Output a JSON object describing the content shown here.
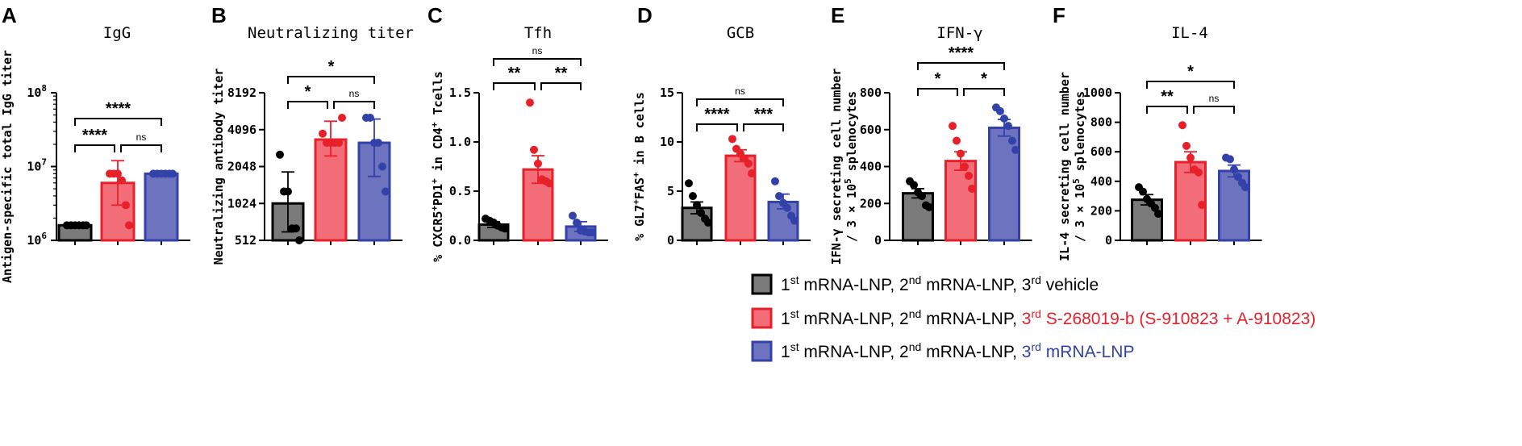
{
  "colors": {
    "vehicle_fill": "#7a7a7a",
    "vehicle_edge": "#000000",
    "vehicle_dot": "#000000",
    "s268_fill": "#f26d78",
    "s268_edge": "#e8202a",
    "s268_dot": "#e8202a",
    "lnp_fill": "#6d73bf",
    "lnp_edge": "#3342a8",
    "lnp_dot": "#3342a8",
    "s268_text": "#e8202a",
    "lnp_text": "#3342a8"
  },
  "legend": [
    {
      "p1": "1",
      "s1": "st",
      "p2": " mRNA-LNP, 2",
      "s2": "nd",
      "p3": " mRNA-LNP, ",
      "p4": "3",
      "s4": "rd",
      "p5": " vehicle",
      "color": "vehicle"
    },
    {
      "p1": "1",
      "s1": "st",
      "p2": " mRNA-LNP, 2",
      "s2": "nd",
      "p3": " mRNA-LNP, ",
      "p4": "3",
      "s4": "rd",
      "p5": " S-268019-b (S-910823 + A-910823)",
      "color": "s268"
    },
    {
      "p1": "1",
      "s1": "st",
      "p2": " mRNA-LNP, 2",
      "s2": "nd",
      "p3": " mRNA-LNP, ",
      "p4": "3",
      "s4": "rd",
      "p5": " mRNA-LNP",
      "color": "lnp"
    }
  ],
  "chart_data": [
    {
      "panel": "A",
      "type": "bar",
      "title": "IgG",
      "scale": "log10",
      "ylabel": "Antigen-specific total IgG titer",
      "ylim": [
        1000000,
        100000000
      ],
      "yticks": [
        {
          "value": 100000000,
          "base": "10",
          "exp": "8"
        },
        {
          "value": 10000000,
          "base": "10",
          "exp": "7"
        },
        {
          "value": 1000000,
          "base": "10",
          "exp": "6"
        }
      ],
      "groups": [
        "vehicle",
        "s268",
        "lnp"
      ],
      "means": [
        1600000,
        6000000,
        8000000
      ],
      "errors": [
        [
          1600000,
          1600000
        ],
        [
          3000000,
          12000000
        ],
        [
          8000000,
          8000000
        ]
      ],
      "points": [
        [
          1600000,
          1600000,
          1600000,
          1600000,
          1600000,
          1600000
        ],
        [
          8000000,
          8000000,
          8000000,
          6500000,
          3000000,
          1600000
        ],
        [
          8000000,
          8000000,
          8000000,
          8000000,
          8000000,
          8000000
        ]
      ],
      "comparisons": [
        {
          "from": 0,
          "to": 2,
          "label": "****",
          "level": 2
        },
        {
          "from": 0,
          "to": 1,
          "label": "****",
          "level": 1
        },
        {
          "from": 1,
          "to": 2,
          "label": "ns",
          "level": 1
        }
      ]
    },
    {
      "panel": "B",
      "type": "bar",
      "title": "Neutralizing titer",
      "scale": "log2",
      "ylabel": "Neutralizing antibody titer",
      "ylim": [
        512,
        8192
      ],
      "yticks": [
        {
          "value": 8192,
          "label": "8192"
        },
        {
          "value": 4096,
          "label": "4096"
        },
        {
          "value": 2048,
          "label": "2048"
        },
        {
          "value": 1024,
          "label": "1024"
        },
        {
          "value": 512,
          "label": "512"
        }
      ],
      "groups": [
        "vehicle",
        "s268",
        "lnp"
      ],
      "means": [
        1024,
        3400,
        3200
      ],
      "errors": [
        [
          600,
          1850
        ],
        [
          2500,
          4800
        ],
        [
          1700,
          5000
        ]
      ],
      "points": [
        [
          2560,
          1280,
          1280,
          640,
          640,
          512
        ],
        [
          3800,
          3200,
          3200,
          3200,
          3200,
          5120
        ],
        [
          5120,
          5120,
          3200,
          3200,
          2048,
          1280
        ]
      ],
      "comparisons": [
        {
          "from": 0,
          "to": 2,
          "label": "*",
          "level": 2
        },
        {
          "from": 0,
          "to": 1,
          "label": "*",
          "level": 1
        },
        {
          "from": 1,
          "to": 2,
          "label": "ns",
          "level": 1
        }
      ]
    },
    {
      "panel": "C",
      "type": "bar",
      "title": "Tfh",
      "scale": "linear",
      "ylabel": [
        "% CXCR5",
        "+",
        "PD1",
        "+",
        " in CD4",
        "+",
        " Tcells"
      ],
      "ylim": [
        0,
        1.5
      ],
      "yticks": [
        {
          "value": 0.0,
          "label": "0.0"
        },
        {
          "value": 0.5,
          "label": "0.5"
        },
        {
          "value": 1.0,
          "label": "1.0"
        },
        {
          "value": 1.5,
          "label": "1.5"
        }
      ],
      "groups": [
        "vehicle",
        "s268",
        "lnp"
      ],
      "means": [
        0.16,
        0.72,
        0.14
      ],
      "errors": [
        [
          0.13,
          0.19
        ],
        [
          0.58,
          0.86
        ],
        [
          0.09,
          0.19
        ]
      ],
      "points": [
        [
          0.22,
          0.2,
          0.18,
          0.15,
          0.13,
          0.12
        ],
        [
          1.4,
          0.92,
          0.78,
          0.62,
          0.6,
          0.58
        ],
        [
          0.25,
          0.18,
          0.1,
          0.09,
          0.08,
          0.08
        ]
      ],
      "comparisons": [
        {
          "from": 0,
          "to": 2,
          "label": "ns",
          "level": 2
        },
        {
          "from": 0,
          "to": 1,
          "label": "**",
          "level": 1
        },
        {
          "from": 1,
          "to": 2,
          "label": "**",
          "level": 1
        }
      ]
    },
    {
      "panel": "D",
      "type": "bar",
      "title": "GCB",
      "scale": "linear",
      "ylabel": [
        "% GL7",
        "+",
        "FAS",
        "+",
        " in B cells"
      ],
      "ylim": [
        0,
        15
      ],
      "yticks": [
        {
          "value": 0,
          "label": "0"
        },
        {
          "value": 5,
          "label": "5"
        },
        {
          "value": 10,
          "label": "10"
        },
        {
          "value": 15,
          "label": "15"
        }
      ],
      "groups": [
        "vehicle",
        "s268",
        "lnp"
      ],
      "means": [
        3.3,
        8.6,
        3.9
      ],
      "errors": [
        [
          2.7,
          3.9
        ],
        [
          8.0,
          9.2
        ],
        [
          3.2,
          4.7
        ]
      ],
      "points": [
        [
          5.8,
          4.5,
          3.6,
          2.8,
          2.2,
          1.8
        ],
        [
          10.3,
          9.3,
          8.8,
          8.3,
          7.8,
          6.8
        ],
        [
          6.0,
          4.5,
          3.8,
          3.3,
          2.5,
          2.0
        ]
      ],
      "comparisons": [
        {
          "from": 0,
          "to": 2,
          "label": "ns",
          "level": 2
        },
        {
          "from": 0,
          "to": 1,
          "label": "****",
          "level": 1
        },
        {
          "from": 1,
          "to": 2,
          "label": "***",
          "level": 1
        }
      ]
    },
    {
      "panel": "E",
      "type": "bar",
      "title": "IFN-γ",
      "scale": "linear",
      "ylabel": "IFN-γ secreting cell number",
      "ylabel2": [
        "/ 3 × 10",
        "5",
        " splenocytes"
      ],
      "ylim": [
        0,
        800
      ],
      "yticks": [
        {
          "value": 0,
          "label": "0"
        },
        {
          "value": 200,
          "label": "200"
        },
        {
          "value": 400,
          "label": "400"
        },
        {
          "value": 600,
          "label": "600"
        },
        {
          "value": 800,
          "label": "800"
        }
      ],
      "groups": [
        "vehicle",
        "s268",
        "lnp"
      ],
      "means": [
        255,
        430,
        610
      ],
      "errors": [
        [
          230,
          280
        ],
        [
          380,
          480
        ],
        [
          565,
          655
        ]
      ],
      "points": [
        [
          320,
          300,
          260,
          240,
          190,
          180
        ],
        [
          620,
          540,
          470,
          400,
          350,
          280
        ],
        [
          720,
          700,
          660,
          620,
          540,
          490
        ]
      ],
      "comparisons": [
        {
          "from": 0,
          "to": 2,
          "label": "****",
          "level": 2
        },
        {
          "from": 0,
          "to": 1,
          "label": "*",
          "level": 1
        },
        {
          "from": 1,
          "to": 2,
          "label": "*",
          "level": 1
        }
      ]
    },
    {
      "panel": "F",
      "type": "bar",
      "title": "IL-4",
      "scale": "linear",
      "ylabel": "IL-4 secreting cell number",
      "ylabel2": [
        "/ 3 × 10",
        "5",
        " splenocytes"
      ],
      "ylim": [
        0,
        1000
      ],
      "yticks": [
        {
          "value": 0,
          "label": "0"
        },
        {
          "value": 200,
          "label": "200"
        },
        {
          "value": 400,
          "label": "400"
        },
        {
          "value": 600,
          "label": "600"
        },
        {
          "value": 800,
          "label": "800"
        },
        {
          "value": 1000,
          "label": "1000"
        }
      ],
      "groups": [
        "vehicle",
        "s268",
        "lnp"
      ],
      "means": [
        275,
        530,
        470
      ],
      "errors": [
        [
          240,
          310
        ],
        [
          460,
          600
        ],
        [
          430,
          510
        ]
      ],
      "points": [
        [
          360,
          330,
          280,
          250,
          220,
          180
        ],
        [
          780,
          640,
          560,
          480,
          460,
          240
        ],
        [
          560,
          550,
          480,
          430,
          390,
          360
        ]
      ],
      "comparisons": [
        {
          "from": 0,
          "to": 2,
          "label": "*",
          "level": 2
        },
        {
          "from": 0,
          "to": 1,
          "label": "**",
          "level": 1
        },
        {
          "from": 1,
          "to": 2,
          "label": "ns",
          "level": 1
        }
      ]
    }
  ]
}
